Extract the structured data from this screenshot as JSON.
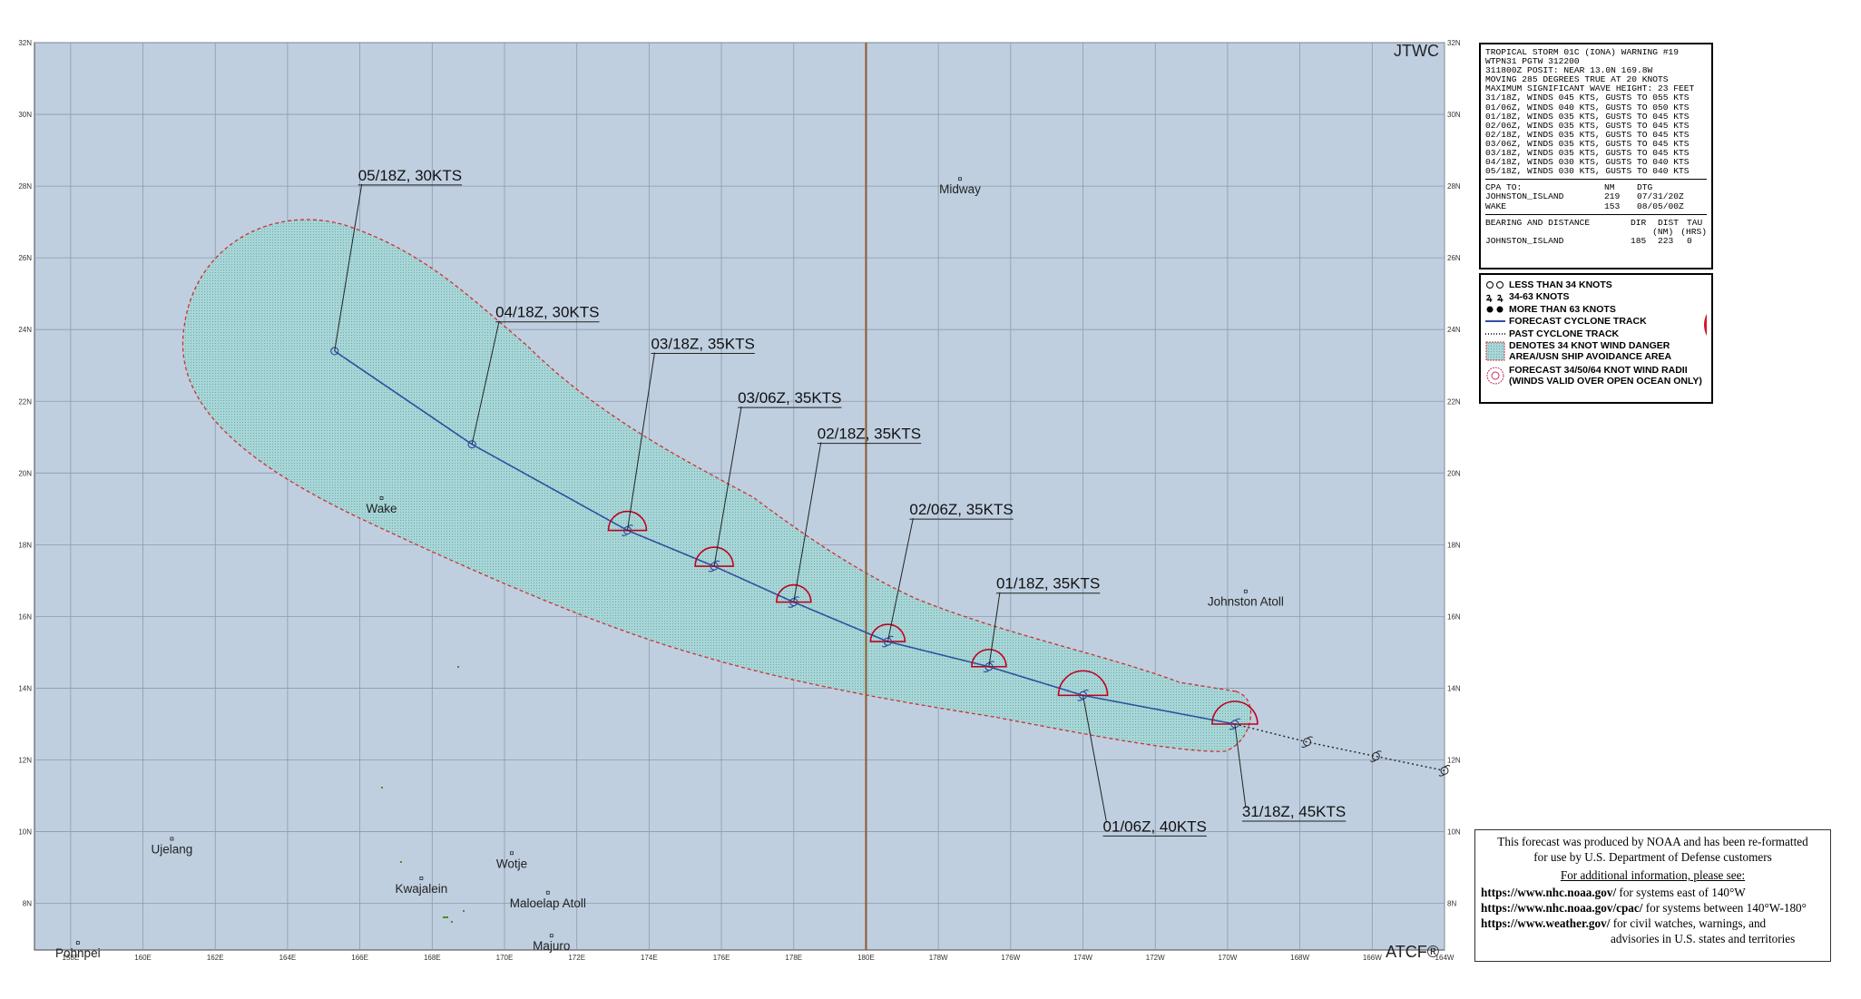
{
  "map": {
    "lon_range": [
      157,
      196
    ],
    "lat_range": [
      6.7,
      32
    ],
    "lon_ticks": [
      "158E",
      "160E",
      "162E",
      "164E",
      "166E",
      "168E",
      "170E",
      "172E",
      "174E",
      "176E",
      "178E",
      "180E",
      "178W",
      "176W",
      "174W",
      "172W",
      "170W",
      "168W",
      "166W",
      "164W"
    ],
    "lat_ticks": [
      "8N",
      "10N",
      "12N",
      "14N",
      "16N",
      "18N",
      "20N",
      "22N",
      "24N",
      "26N",
      "28N",
      "30N",
      "32N"
    ],
    "label_jtwc": "JTWC",
    "label_atcf": "ATCF®",
    "colors": {
      "ocean": "#bfcfe0",
      "grid": "#8c9aad",
      "dateline": "#8b5a2b",
      "track": "#3050a0",
      "danger": "#9fd0d0",
      "danger_edge": "#d03030",
      "radii": "#c00020"
    },
    "places": [
      {
        "name": "Midway",
        "lon": 182.6,
        "lat": 28.2
      },
      {
        "name": "Wake",
        "lon": 166.6,
        "lat": 19.3
      },
      {
        "name": "Johnston Atoll",
        "lon": 190.5,
        "lat": 16.7
      },
      {
        "name": "Ujelang",
        "lon": 160.8,
        "lat": 9.8
      },
      {
        "name": "Wotje",
        "lon": 170.2,
        "lat": 9.4
      },
      {
        "name": "Kwajalein",
        "lon": 167.7,
        "lat": 8.7
      },
      {
        "name": "Maloelap Atoll",
        "lon": 171.2,
        "lat": 8.3
      },
      {
        "name": "Majuro",
        "lon": 171.3,
        "lat": 7.1
      },
      {
        "name": "Pohnpei",
        "lon": 158.2,
        "lat": 6.9
      }
    ]
  },
  "track": {
    "forecast": [
      {
        "label": "31/18Z,  45KTS",
        "lon": 190.2,
        "lat": 13.0
      },
      {
        "label": "01/06Z,  40KTS",
        "lon": 186.0,
        "lat": 13.8
      },
      {
        "label": "01/18Z,  35KTS",
        "lon": 183.4,
        "lat": 14.6
      },
      {
        "label": "02/06Z,  35KTS",
        "lon": 180.6,
        "lat": 15.3
      },
      {
        "label": "02/18Z,  35KTS",
        "lon": 178.0,
        "lat": 16.4
      },
      {
        "label": "03/06Z,  35KTS",
        "lon": 175.8,
        "lat": 17.4
      },
      {
        "label": "03/18Z,  35KTS",
        "lon": 173.4,
        "lat": 18.4
      },
      {
        "label": "04/18Z,  30KTS",
        "lon": 169.1,
        "lat": 20.8
      },
      {
        "label": "05/18Z,  30KTS",
        "lon": 165.3,
        "lat": 23.4
      }
    ],
    "past": [
      {
        "lon": 192.2,
        "lat": 12.5
      },
      {
        "lon": 194.1,
        "lat": 12.1
      },
      {
        "lon": 196.0,
        "lat": 11.7
      }
    ]
  },
  "warning": {
    "lines": [
      "TROPICAL STORM 01C (IONA) WARNING #19",
      "WTPN31 PGTW 312200",
      "311800Z POSIT: NEAR 13.0N 169.8W",
      "MOVING 285 DEGREES TRUE AT 20 KNOTS",
      "MAXIMUM SIGNIFICANT WAVE HEIGHT: 23 FEET",
      "31/18Z, WINDS 045 KTS, GUSTS TO 055 KTS",
      "01/06Z, WINDS 040 KTS, GUSTS TO 050 KTS",
      "01/18Z, WINDS 035 KTS, GUSTS TO 045 KTS",
      "02/06Z, WINDS 035 KTS, GUSTS TO 045 KTS",
      "02/18Z, WINDS 035 KTS, GUSTS TO 045 KTS",
      "03/06Z, WINDS 035 KTS, GUSTS TO 045 KTS",
      "03/18Z, WINDS 035 KTS, GUSTS TO 045 KTS",
      "04/18Z, WINDS 030 KTS, GUSTS TO 040 KTS",
      "05/18Z, WINDS 030 KTS, GUSTS TO 040 KTS"
    ],
    "cpa_header": [
      "CPA TO:",
      "NM",
      "DTG"
    ],
    "cpa_rows": [
      [
        "JOHNSTON_ISLAND",
        "219",
        "07/31/20Z"
      ],
      [
        "WAKE",
        "153",
        "08/05/00Z"
      ]
    ],
    "bd_header": [
      "BEARING AND DISTANCE",
      "DIR",
      "DIST",
      "TAU"
    ],
    "bd_units": [
      "",
      "",
      "(NM)",
      "(HRS)"
    ],
    "bd_rows": [
      [
        "JOHNSTON_ISLAND",
        "185",
        "223",
        "0"
      ]
    ]
  },
  "legend": {
    "items": [
      "LESS THAN 34 KNOTS",
      "34-63 KNOTS",
      "MORE THAN 63 KNOTS",
      "FORECAST CYCLONE TRACK",
      "PAST CYCLONE TRACK",
      "DENOTES 34 KNOT WIND DANGER",
      "AREA/USN SHIP AVOIDANCE AREA",
      "FORECAST 34/50/64 KNOT WIND RADII",
      "(WINDS VALID OVER OPEN OCEAN ONLY)"
    ]
  },
  "info": {
    "line1": "This forecast was produced by NOAA and has been re-formatted",
    "line2": "for use by U.S. Department of Defense customers",
    "line3": "For additional information, please see:",
    "links": [
      {
        "url": "https://www.nhc.noaa.gov/",
        "desc": "  for systems east of 140°W"
      },
      {
        "url": "https://www.nhc.noaa.gov/cpac/",
        "desc": "  for systems between 140°W-180°"
      },
      {
        "url": "https://www.weather.gov/",
        "desc": "  for civil watches, warnings, and"
      }
    ],
    "line_last": "advisories in U.S. states and territories"
  }
}
